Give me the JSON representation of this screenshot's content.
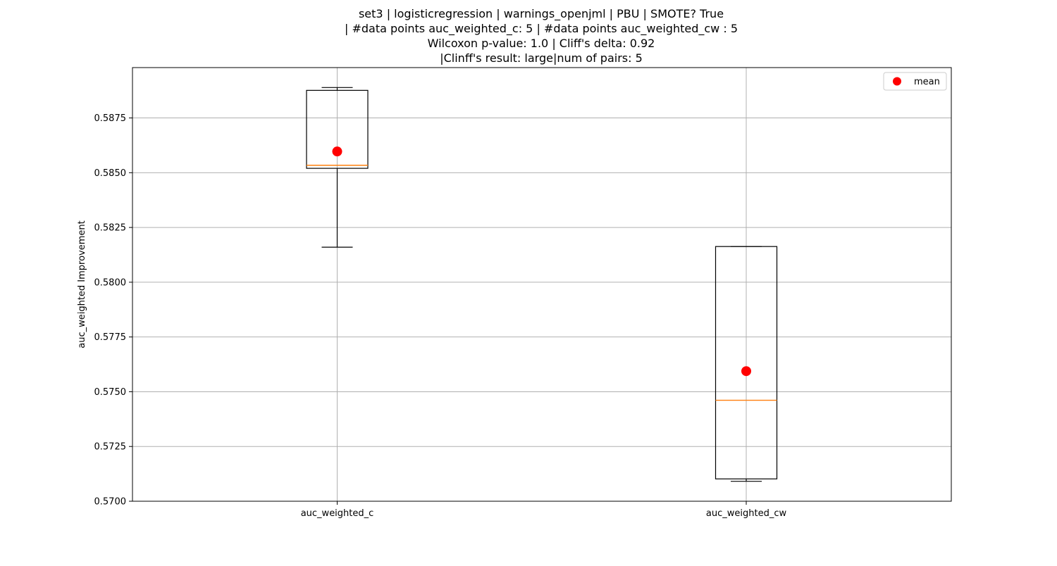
{
  "chart_data": {
    "type": "box",
    "title_lines": [
      "set3 | logisticregression | warnings_openjml | PBU | SMOTE? True",
      "| #data points auc_weighted_c: 5 | #data points auc_weighted_cw : 5",
      "Wilcoxon p-value: 1.0 | Cliff's delta: 0.92",
      "|Clinff's result: large|num of pairs: 5"
    ],
    "xlabel": "",
    "ylabel": "auc_weighted Improvement",
    "ylim": [
      0.57,
      0.5898
    ],
    "yticks": [
      0.57,
      0.5725,
      0.575,
      0.5775,
      0.58,
      0.5825,
      0.585,
      0.5875
    ],
    "ytick_labels": [
      "0.5700",
      "0.5725",
      "0.5750",
      "0.5775",
      "0.5800",
      "0.5825",
      "0.5850",
      "0.5875"
    ],
    "grid": true,
    "legend": {
      "position": "top-right",
      "entries": [
        "mean"
      ]
    },
    "categories": [
      "auc_weighted_c",
      "auc_weighted_cw"
    ],
    "boxes": [
      {
        "label": "auc_weighted_c",
        "whisker_low": 0.5816,
        "q1": 0.5852,
        "median": 0.58534,
        "q3": 0.58876,
        "whisker_high": 0.58889,
        "mean": 0.58597
      },
      {
        "label": "auc_weighted_cw",
        "whisker_low": 0.57091,
        "q1": 0.57102,
        "median": 0.57461,
        "q3": 0.58163,
        "whisker_high": 0.58163,
        "mean": 0.57594
      }
    ],
    "colors": {
      "box": "#000000",
      "median": "#ff7f0e",
      "mean": "#ff0000",
      "grid": "#b0b0b0"
    }
  }
}
